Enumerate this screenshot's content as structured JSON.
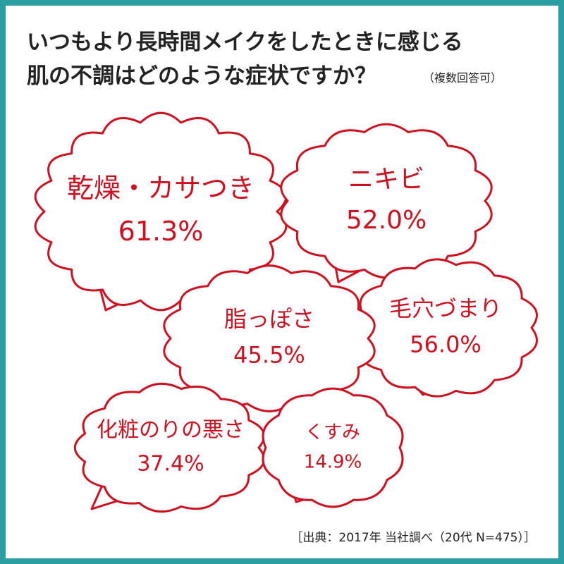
{
  "title_line1": "いつもより長時間メイクをしたときに感じる",
  "title_line2": "肌の不調はどのような症状ですか？",
  "note": "（複数回答可）",
  "source": "［出典：2017年 当社調べ（20代 N=475）］",
  "chart_data": {
    "type": "callout",
    "categories": [
      "乾燥・カサつき",
      "ニキビ",
      "毛穴づまり",
      "脂っぽさ",
      "化粧のりの悪さ",
      "くすみ"
    ],
    "values": [
      61.3,
      52.0,
      56.0,
      45.5,
      37.4,
      14.9
    ],
    "value_labels": [
      "61.3%",
      "52.0%",
      "56.0%",
      "45.5%",
      "37.4%",
      "14.9%"
    ],
    "color": "#d0101e"
  }
}
